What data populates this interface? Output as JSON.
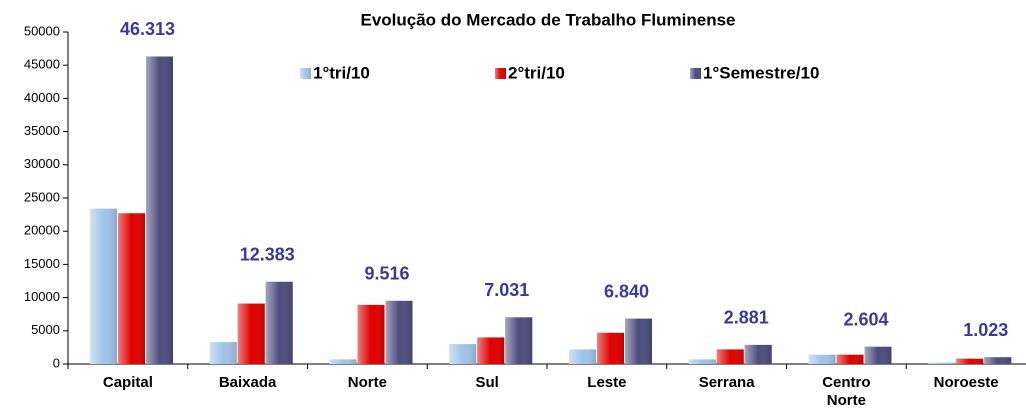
{
  "chart_data": {
    "type": "bar",
    "title": "Evolução do Mercado de Trabalho Fluminense",
    "categories": [
      "Capital",
      "Baixada",
      "Norte",
      "Sul",
      "Leste",
      "Serrana",
      "Centro Norte",
      "Noroeste"
    ],
    "series": [
      {
        "name": "1°tri/10",
        "color": "#9fc4e8",
        "values": [
          23400,
          3300,
          700,
          3000,
          2200,
          700,
          1400,
          200
        ]
      },
      {
        "name": "2°tri/10",
        "color": "#e00000",
        "values": [
          22700,
          9100,
          8900,
          4000,
          4700,
          2200,
          1400,
          800
        ]
      },
      {
        "name": "1°Semestre/10",
        "color": "#4d4d7e",
        "values": [
          46313,
          12383,
          9516,
          7031,
          6840,
          2881,
          2604,
          1023
        ],
        "value_labels": [
          "46.313",
          "12.383",
          "9.516",
          "7.031",
          "6.840",
          "2.881",
          "2.604",
          "1.023"
        ]
      }
    ],
    "ylim": [
      0,
      50000
    ],
    "yticks": [
      0,
      5000,
      10000,
      15000,
      20000,
      25000,
      30000,
      35000,
      40000,
      45000,
      50000
    ],
    "grid": false,
    "legend": "top"
  }
}
